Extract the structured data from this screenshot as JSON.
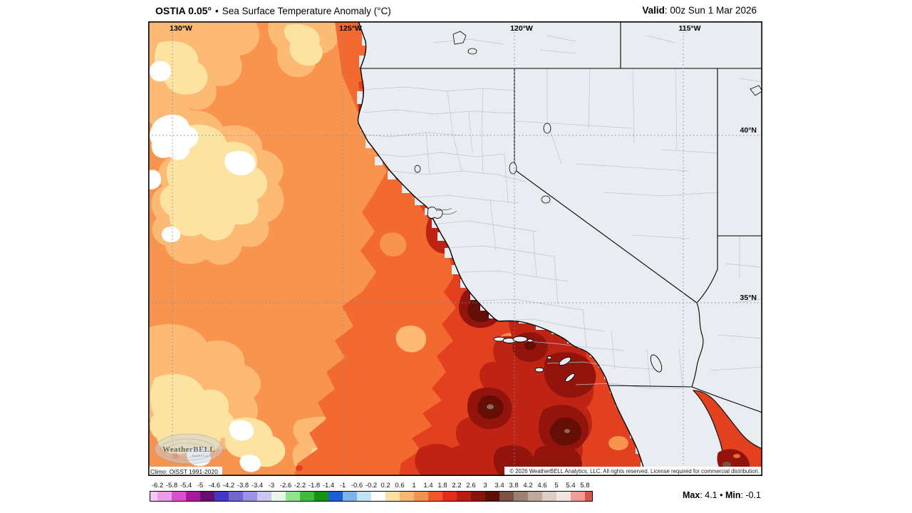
{
  "header": {
    "product": "OSTIA 0.05°",
    "separator": "•",
    "title": "Sea Surface Temperature Anomaly (°C)",
    "valid_label": "Valid",
    "valid_rest": ": 00z Sun 1 Mar 2026"
  },
  "map": {
    "lon_labels": {
      "l130": "130°W",
      "l125": "125°W",
      "l120": "120°W",
      "l115": "115°W"
    },
    "lat_labels": {
      "l40": "40°N",
      "l35": "35°N"
    },
    "climo_note": "Climo: OISST 1991-2020",
    "copyright": "© 2026 WeatherBELL Analytics, LLC. All rights reserved. License required for commercial distribution.",
    "watermark_line1": "WeatherBELL",
    "watermark_line2": "Analytics LLC"
  },
  "colorbar": {
    "tick_labels": [
      "-6.2",
      "-5.8",
      "-5.4",
      "-5",
      "-4.6",
      "-4.2",
      "-3.8",
      "-3.4",
      "-3",
      "-2.6",
      "-2.2",
      "-1.8",
      "-1.4",
      "-1",
      "-0.6",
      "-0.2",
      "0.2",
      "0.6",
      "1",
      "1.4",
      "1.8",
      "2.2",
      "2.6",
      "3",
      "3.4",
      "3.8",
      "4.2",
      "4.6",
      "5",
      "5.4",
      "5.8"
    ],
    "colors": [
      "#f5c8f1",
      "#ee9ce8",
      "#dc4fd1",
      "#a819a0",
      "#6b0d71",
      "#4338c4",
      "#7265d4",
      "#9c94e6",
      "#ccc6f4",
      "#e9f8e6",
      "#8ee68a",
      "#3cbe3c",
      "#129412",
      "#1b5fd6",
      "#7fb2e8",
      "#c2e2f6",
      "#ffffff",
      "#fcdfa4",
      "#fbb771",
      "#f9914e",
      "#f15a25",
      "#dd3018",
      "#b81c12",
      "#8e120c",
      "#600d04",
      "#7b5143",
      "#9d8072",
      "#c0a99c",
      "#ddcdc4",
      "#f2e6e1",
      "#f49c94",
      "#d9534a"
    ]
  },
  "stats": {
    "max_label": "Max",
    "max_rest": ": 4.1",
    "separator": " • ",
    "min_label": "Min",
    "min_rest": ": -0.1"
  },
  "palette": {
    "land": "#e9edf2",
    "ocean_base": "#f9944e",
    "county_line": "#b9c5cf",
    "border_line": "#000000"
  }
}
